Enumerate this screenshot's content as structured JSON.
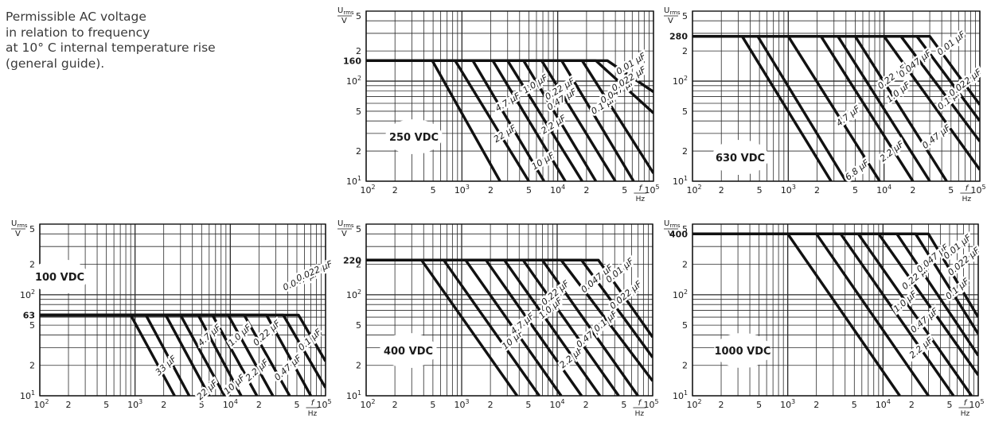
{
  "caption": {
    "lines": [
      "Permissible AC voltage",
      "in relation to frequency",
      "at 10° C internal temperature rise",
      "(general guide)."
    ]
  },
  "chart_data": [
    {
      "type": "line",
      "panel": "250 VDC",
      "title": "",
      "badge": "250 VDC",
      "ylabel": "U_rms / V",
      "xlabel": "f / Hz",
      "x_scale": "log",
      "y_scale": "log",
      "xlim": [
        100,
        100000
      ],
      "ylim": [
        10,
        500
      ],
      "grid": true,
      "x_ticks": [
        "10^2",
        "2",
        "5",
        "10^3",
        "2",
        "5",
        "10^4",
        "2",
        "5",
        "10^5"
      ],
      "y_ticks": [
        "10^1",
        "2",
        "5",
        "10^2",
        "2",
        "5"
      ],
      "rated_ac_voltage": 160,
      "series": [
        {
          "name": "22 µF",
          "x": [
            100,
            490,
            2500
          ],
          "y": [
            160,
            160,
            10
          ]
        },
        {
          "name": "10 µF",
          "x": [
            100,
            850,
            5000
          ],
          "y": [
            160,
            160,
            10
          ]
        },
        {
          "name": "4.7 µF",
          "x": [
            100,
            1300,
            7200
          ],
          "y": [
            160,
            160,
            10
          ]
        },
        {
          "name": "2.2 µF",
          "x": [
            100,
            2100,
            12000
          ],
          "y": [
            160,
            160,
            10
          ]
        },
        {
          "name": "1.0 µF",
          "x": [
            100,
            3000,
            18000
          ],
          "y": [
            160,
            160,
            10
          ]
        },
        {
          "name": "0.47 µF",
          "x": [
            100,
            4400,
            25000
          ],
          "y": [
            160,
            160,
            10
          ]
        },
        {
          "name": "0.22 µF",
          "x": [
            100,
            6800,
            40000
          ],
          "y": [
            160,
            160,
            10
          ]
        },
        {
          "name": "0.1 µF",
          "x": [
            100,
            11000,
            62000
          ],
          "y": [
            160,
            160,
            10
          ]
        },
        {
          "name": "0.047 µF",
          "x": [
            100,
            18000,
            100000
          ],
          "y": [
            160,
            160,
            12
          ]
        },
        {
          "name": "0.022 µF",
          "x": [
            100,
            25000,
            100000
          ],
          "y": [
            160,
            160,
            48
          ]
        },
        {
          "name": "0.01 µF",
          "x": [
            100,
            33000,
            100000
          ],
          "y": [
            160,
            160,
            78
          ]
        }
      ],
      "labels": [
        {
          "text": "22 µF",
          "x": 2800,
          "y": 30,
          "rot": -32
        },
        {
          "text": "10 µF",
          "x": 7000,
          "y": 16,
          "rot": -32
        },
        {
          "text": "4.7 µF",
          "x": 3000,
          "y": 62,
          "rot": -32
        },
        {
          "text": "2.2 µF",
          "x": 9000,
          "y": 37,
          "rot": -32
        },
        {
          "text": "1.0 µF",
          "x": 5800,
          "y": 94,
          "rot": -32
        },
        {
          "text": "0.47 µF",
          "x": 11000,
          "y": 66,
          "rot": -32
        },
        {
          "text": "0.22 µF",
          "x": 10500,
          "y": 84,
          "rot": -32
        },
        {
          "text": "0.1 µF",
          "x": 30000,
          "y": 58,
          "rot": -32
        },
        {
          "text": "0.047 µF",
          "x": 42000,
          "y": 80,
          "rot": -32
        },
        {
          "text": "0.022 µF",
          "x": 55000,
          "y": 106,
          "rot": -32
        },
        {
          "text": "0.01 µF",
          "x": 58000,
          "y": 150,
          "rot": -32
        }
      ]
    },
    {
      "type": "line",
      "panel": "630 VDC",
      "title": "",
      "badge": "630 VDC",
      "ylabel": "U_rms / V",
      "xlabel": "f / Hz",
      "x_scale": "log",
      "y_scale": "log",
      "xlim": [
        100,
        100000
      ],
      "ylim": [
        10,
        500
      ],
      "grid": true,
      "x_ticks": [
        "10^2",
        "2",
        "5",
        "10^3",
        "2",
        "5",
        "10^4",
        "2",
        "5",
        "10^5"
      ],
      "y_ticks": [
        "10^1",
        "2",
        "5",
        "10^2",
        "2",
        "5"
      ],
      "rated_ac_voltage": 280,
      "series": [
        {
          "name": "6.8 µF",
          "x": [
            100,
            330,
            2800
          ],
          "y": [
            280,
            280,
            10
          ]
        },
        {
          "name": "4.7 µF",
          "x": [
            100,
            480,
            4000
          ],
          "y": [
            280,
            280,
            10
          ]
        },
        {
          "name": "2.2 µF",
          "x": [
            100,
            1000,
            9000
          ],
          "y": [
            280,
            280,
            10
          ]
        },
        {
          "name": "1.0 µF",
          "x": [
            100,
            2200,
            20000
          ],
          "y": [
            280,
            280,
            10
          ]
        },
        {
          "name": "0.47 µF",
          "x": [
            100,
            3300,
            30000
          ],
          "y": [
            280,
            280,
            10
          ]
        },
        {
          "name": "0.22 µF",
          "x": [
            100,
            5000,
            45000
          ],
          "y": [
            280,
            280,
            10
          ]
        },
        {
          "name": "0.1 µF",
          "x": [
            100,
            10000,
            100000
          ],
          "y": [
            280,
            280,
            13
          ]
        },
        {
          "name": "0.047 µF",
          "x": [
            100,
            15000,
            100000
          ],
          "y": [
            280,
            280,
            25
          ]
        },
        {
          "name": "0.022 µF",
          "x": [
            100,
            22000,
            100000
          ],
          "y": [
            280,
            280,
            40
          ]
        },
        {
          "name": "0.01 µF",
          "x": [
            100,
            30000,
            100000
          ],
          "y": [
            280,
            280,
            58
          ]
        }
      ],
      "labels": [
        {
          "text": "6.8 µF",
          "x": 5200,
          "y": 13,
          "rot": -38
        },
        {
          "text": "2.2 µF",
          "x": 12000,
          "y": 20,
          "rot": -38
        },
        {
          "text": "4.7 µF",
          "x": 4200,
          "y": 45,
          "rot": -38
        },
        {
          "text": "0.47 µF",
          "x": 35000,
          "y": 28,
          "rot": -38
        },
        {
          "text": "1.0 µF",
          "x": 14000,
          "y": 78,
          "rot": -38
        },
        {
          "text": "0.22 µF",
          "x": 12000,
          "y": 110,
          "rot": -38
        },
        {
          "text": "0.1 µF",
          "x": 48000,
          "y": 66,
          "rot": -38
        },
        {
          "text": "0.047 µF",
          "x": 21000,
          "y": 150,
          "rot": -38
        },
        {
          "text": "0.022 µF",
          "x": 70000,
          "y": 97,
          "rot": -38
        },
        {
          "text": "0.01 µF",
          "x": 50000,
          "y": 240,
          "rot": -38
        }
      ]
    },
    {
      "type": "line",
      "panel": "100 VDC",
      "title": "",
      "badge": "100 VDC",
      "ylabel": "U_rms / V",
      "xlabel": "f / Hz",
      "x_scale": "log",
      "y_scale": "log",
      "xlim": [
        100,
        100000
      ],
      "ylim": [
        10,
        500
      ],
      "grid": true,
      "x_ticks": [
        "10^2",
        "2",
        "5",
        "10^3",
        "2",
        "5",
        "10^4",
        "2",
        "5",
        "10^5"
      ],
      "y_ticks": [
        "10^1",
        "2",
        "5",
        "10^2",
        "2",
        "5"
      ],
      "rated_ac_voltage": 63,
      "series": [
        {
          "name": "33 µF",
          "x": [
            100,
            900,
            2600
          ],
          "y": [
            63,
            63,
            10
          ]
        },
        {
          "name": "22 µF",
          "x": [
            100,
            1300,
            3700
          ],
          "y": [
            63,
            63,
            10
          ]
        },
        {
          "name": "10 µF",
          "x": [
            100,
            2100,
            6000
          ],
          "y": [
            63,
            63,
            10
          ]
        },
        {
          "name": "4.7 µF",
          "x": [
            100,
            3000,
            8700
          ],
          "y": [
            63,
            63,
            10
          ]
        },
        {
          "name": "2.2 µF",
          "x": [
            100,
            4600,
            13000
          ],
          "y": [
            63,
            63,
            10
          ]
        },
        {
          "name": "1.0 µF",
          "x": [
            100,
            6500,
            19000
          ],
          "y": [
            63,
            63,
            10
          ]
        },
        {
          "name": "0.47 µF",
          "x": [
            100,
            9500,
            28000
          ],
          "y": [
            63,
            63,
            10
          ]
        },
        {
          "name": "0.22 µF",
          "x": [
            100,
            14000,
            42000
          ],
          "y": [
            63,
            63,
            10
          ]
        },
        {
          "name": "0.1 µF",
          "x": [
            100,
            24000,
            70000
          ],
          "y": [
            63,
            63,
            10
          ]
        },
        {
          "name": "0.047 µF",
          "x": [
            100,
            36000,
            100000
          ],
          "y": [
            63,
            63,
            12
          ]
        },
        {
          "name": "0.022 µF",
          "x": [
            100,
            52000,
            100000
          ],
          "y": [
            63,
            63,
            22
          ]
        }
      ],
      "labels": [
        {
          "text": "33 µF",
          "x": 2100,
          "y": 20,
          "rot": -42
        },
        {
          "text": "22 µF",
          "x": 5700,
          "y": 11.5,
          "rot": -42
        },
        {
          "text": "4.7 µF",
          "x": 6000,
          "y": 40,
          "rot": -42
        },
        {
          "text": "10 µF",
          "x": 11000,
          "y": 13,
          "rot": -42
        },
        {
          "text": "1.0 µF",
          "x": 12500,
          "y": 40,
          "rot": -42
        },
        {
          "text": "2.2 µF",
          "x": 19000,
          "y": 18,
          "rot": -42
        },
        {
          "text": "0.22 µF",
          "x": 24000,
          "y": 42,
          "rot": -42
        },
        {
          "text": "0.47 µF",
          "x": 40000,
          "y": 19,
          "rot": -42
        },
        {
          "text": "0.1 µF",
          "x": 68000,
          "y": 36,
          "rot": -42
        },
        {
          "text": "0.047 µF",
          "x": 55000,
          "y": 140,
          "rot": -24
        },
        {
          "text": "0.022 µF",
          "x": 76000,
          "y": 172,
          "rot": -24
        }
      ]
    },
    {
      "type": "line",
      "panel": "400 VDC",
      "title": "",
      "badge": "400 VDC",
      "ylabel": "U_rms / V",
      "xlabel": "f / Hz",
      "x_scale": "log",
      "y_scale": "log",
      "xlim": [
        100,
        100000
      ],
      "ylim": [
        10,
        500
      ],
      "grid": true,
      "x_ticks": [
        "10^2",
        "2",
        "5",
        "10^3",
        "2",
        "5",
        "10^4",
        "2",
        "5",
        "10^5"
      ],
      "y_ticks": [
        "10^1",
        "2",
        "5",
        "10^2",
        "2",
        "5"
      ],
      "rated_ac_voltage": 220,
      "series": [
        {
          "name": "10 µF",
          "x": [
            100,
            380,
            3800
          ],
          "y": [
            220,
            220,
            10
          ]
        },
        {
          "name": "4.7 µF",
          "x": [
            100,
            650,
            6500
          ],
          "y": [
            220,
            220,
            10
          ]
        },
        {
          "name": "2.2 µF",
          "x": [
            100,
            1100,
            11000
          ],
          "y": [
            220,
            220,
            10
          ]
        },
        {
          "name": "1.0 µF",
          "x": [
            100,
            1800,
            18000
          ],
          "y": [
            220,
            220,
            10
          ]
        },
        {
          "name": "0.47 µF",
          "x": [
            100,
            2800,
            28000
          ],
          "y": [
            220,
            220,
            10
          ]
        },
        {
          "name": "0.22 µF",
          "x": [
            100,
            4400,
            44000
          ],
          "y": [
            220,
            220,
            10
          ]
        },
        {
          "name": "0.1 µF",
          "x": [
            100,
            7000,
            70000
          ],
          "y": [
            220,
            220,
            10
          ]
        },
        {
          "name": "0.047 µF",
          "x": [
            100,
            11000,
            100000
          ],
          "y": [
            220,
            220,
            14
          ]
        },
        {
          "name": "0.022 µF",
          "x": [
            100,
            18000,
            100000
          ],
          "y": [
            220,
            220,
            24
          ]
        },
        {
          "name": "0.01 µF",
          "x": [
            100,
            27000,
            100000
          ],
          "y": [
            220,
            220,
            38
          ]
        }
      ],
      "labels": [
        {
          "text": "10 µF",
          "x": 3400,
          "y": 36,
          "rot": -40
        },
        {
          "text": "4.7 µF",
          "x": 4300,
          "y": 52,
          "rot": -40
        },
        {
          "text": "2.2 µF",
          "x": 14000,
          "y": 24,
          "rot": -40
        },
        {
          "text": "1.0 µF",
          "x": 8500,
          "y": 74,
          "rot": -40
        },
        {
          "text": "0.47 µF",
          "x": 22000,
          "y": 40,
          "rot": -40
        },
        {
          "text": "0.22 µF",
          "x": 9500,
          "y": 105,
          "rot": -40
        },
        {
          "text": "0.1 µF",
          "x": 32000,
          "y": 55,
          "rot": -40
        },
        {
          "text": "0.047 µF",
          "x": 26000,
          "y": 145,
          "rot": -40
        },
        {
          "text": "0.022 µF",
          "x": 52000,
          "y": 100,
          "rot": -40
        },
        {
          "text": "0.01 µF",
          "x": 45000,
          "y": 175,
          "rot": -40
        }
      ]
    },
    {
      "type": "line",
      "panel": "1000 VDC",
      "title": "",
      "badge": "1000 VDC",
      "ylabel": "U_rms / V",
      "xlabel": "f / Hz",
      "x_scale": "log",
      "y_scale": "log",
      "xlim": [
        100,
        100000
      ],
      "ylim": [
        10,
        500
      ],
      "grid": true,
      "x_ticks": [
        "10^2",
        "2",
        "5",
        "10^3",
        "2",
        "5",
        "10^4",
        "2",
        "5",
        "10^5"
      ],
      "y_ticks": [
        "10^1",
        "2",
        "5",
        "10^2",
        "2",
        "5"
      ],
      "rated_ac_voltage": 400,
      "series": [
        {
          "name": "2.2 µF",
          "x": [
            100,
            1000,
            15000
          ],
          "y": [
            400,
            400,
            10
          ]
        },
        {
          "name": "1.0 µF",
          "x": [
            100,
            2000,
            30000
          ],
          "y": [
            400,
            400,
            10
          ]
        },
        {
          "name": "0.47 µF",
          "x": [
            100,
            3600,
            55000
          ],
          "y": [
            400,
            400,
            10
          ]
        },
        {
          "name": "0.22 µF",
          "x": [
            100,
            5500,
            85000
          ],
          "y": [
            400,
            400,
            10
          ]
        },
        {
          "name": "0.1 µF",
          "x": [
            100,
            9000,
            100000
          ],
          "y": [
            400,
            400,
            16
          ]
        },
        {
          "name": "0.047 µF",
          "x": [
            100,
            14000,
            100000
          ],
          "y": [
            400,
            400,
            25
          ]
        },
        {
          "name": "0.022 µF",
          "x": [
            100,
            22000,
            100000
          ],
          "y": [
            400,
            400,
            41
          ]
        },
        {
          "name": "0.01 µF",
          "x": [
            100,
            30000,
            100000
          ],
          "y": [
            400,
            400,
            60
          ]
        }
      ],
      "labels": [
        {
          "text": "2.2 µF",
          "x": 25000,
          "y": 30,
          "rot": -40
        },
        {
          "text": "0.47 µF",
          "x": 27000,
          "y": 56,
          "rot": -40
        },
        {
          "text": "1.0 µF",
          "x": 17000,
          "y": 86,
          "rot": -40
        },
        {
          "text": "0.22 µF",
          "x": 22000,
          "y": 150,
          "rot": -40
        },
        {
          "text": "0.1 µF",
          "x": 60000,
          "y": 115,
          "rot": -40
        },
        {
          "text": "0.047 µF",
          "x": 33000,
          "y": 230,
          "rot": -40
        },
        {
          "text": "0.022 µF",
          "x": 70000,
          "y": 215,
          "rot": -40
        },
        {
          "text": "0.01 µF",
          "x": 60000,
          "y": 300,
          "rot": -40
        }
      ]
    }
  ]
}
